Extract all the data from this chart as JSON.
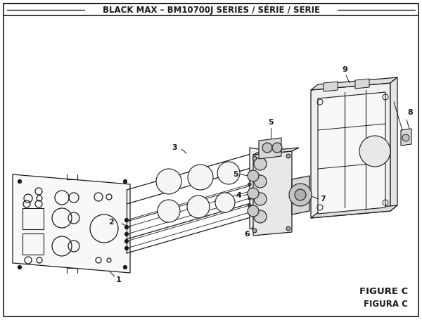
{
  "title": "BLACK MAX – BM10700J SERIES / SÉRIE / SERIE",
  "figure_label": "FIGURE C",
  "figura_label": "FIGURA C",
  "bg_color": "#ffffff",
  "line_color": "#1a1a1a",
  "title_fontsize": 8.5,
  "label_fontsize": 8,
  "figure_label_fontsize": 9.5
}
